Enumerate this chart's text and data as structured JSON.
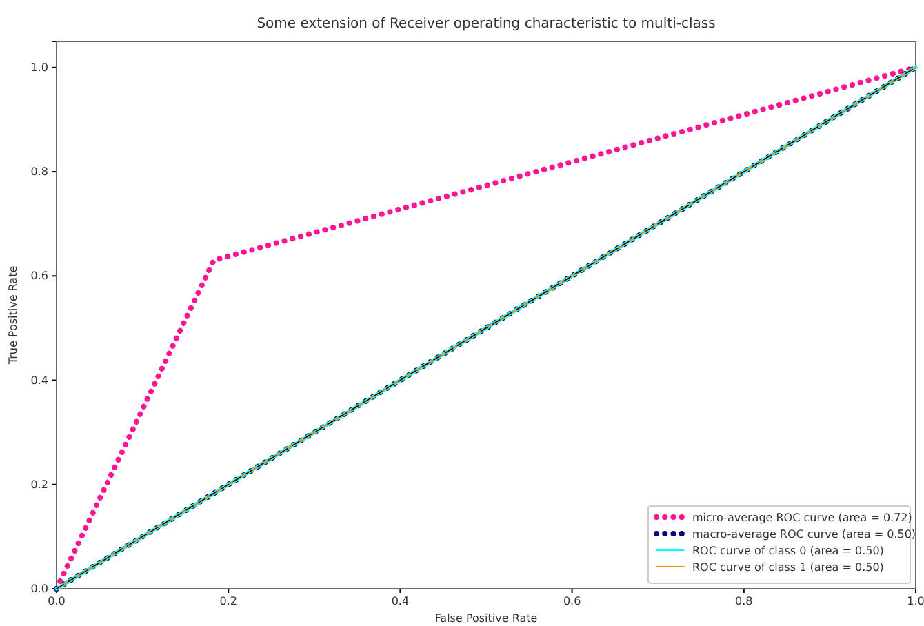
{
  "chart_data": {
    "type": "line",
    "title": "Some extension of Receiver operating characteristic to multi-class",
    "xlabel": "False Positive Rate",
    "ylabel": "True Positive Rate",
    "xlim": [
      0,
      1
    ],
    "ylim": [
      0,
      1.05
    ],
    "xticks": [
      {
        "value": 0,
        "label": "0.0"
      },
      {
        "value": 0.2,
        "label": "0.2"
      },
      {
        "value": 0.4,
        "label": "0.4"
      },
      {
        "value": 0.6,
        "label": "0.6"
      },
      {
        "value": 0.8,
        "label": "0.8"
      },
      {
        "value": 1,
        "label": "1.0"
      }
    ],
    "yticks": [
      {
        "value": 0,
        "label": "0.0"
      },
      {
        "value": 0.2,
        "label": "0.2"
      },
      {
        "value": 0.4,
        "label": "0.4"
      },
      {
        "value": 0.6,
        "label": "0.6"
      },
      {
        "value": 0.8,
        "label": "0.8"
      },
      {
        "value": 1,
        "label": "1.0"
      }
    ],
    "legend": "bottom right",
    "grid": false,
    "series": [
      {
        "name": "micro-average ROC curve (area = 0.72)",
        "color": "#ff1493",
        "x": [
          0,
          0.183,
          1
        ],
        "values": [
          0,
          0.63,
          1
        ],
        "line_style": "dotted"
      },
      {
        "name": "macro-average ROC curve (area = 0.50)",
        "color": "#000080",
        "x": [
          0,
          1
        ],
        "values": [
          0,
          1
        ],
        "line_style": "dotted"
      },
      {
        "name": "ROC curve of class 0 (area = 0.50)",
        "color": "#00ffff",
        "x": [
          0,
          1
        ],
        "values": [
          0,
          1
        ],
        "line_style": "solid"
      },
      {
        "name": "ROC curve of class 1 (area = 0.50)",
        "color": "#ff8c00",
        "x": [
          0,
          1
        ],
        "values": [
          0,
          1
        ],
        "line_style": "solid"
      },
      {
        "color": "#000000",
        "x": [
          0,
          1
        ],
        "values": [
          0,
          1
        ],
        "line_style": "dashed"
      }
    ]
  }
}
